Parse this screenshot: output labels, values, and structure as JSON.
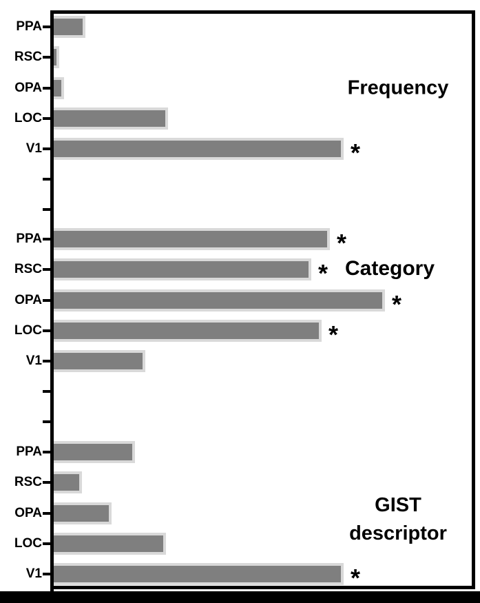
{
  "figure": {
    "background_color": "#ffffff",
    "frame_color": "#000000",
    "bottom_bar_color": "#000000"
  },
  "chart_data": {
    "type": "bar",
    "orientation": "horizontal",
    "title": "",
    "xlabel": "",
    "ylabel": "",
    "axis_numeric_labels": false,
    "xlim_fraction": [
      0,
      1
    ],
    "grid": false,
    "bar_color": "#7f7f7f",
    "bar_edge_color": "#d9d9d9",
    "significance_marker": "*",
    "groups": [
      {
        "label": "Frequency",
        "label_lines": [
          "Frequency"
        ],
        "categories": [
          "PPA",
          "RSC",
          "OPA",
          "LOC",
          "V1"
        ],
        "values": [
          0.07,
          0.006,
          0.018,
          0.267,
          0.687
        ],
        "significant": [
          false,
          false,
          false,
          false,
          true
        ]
      },
      {
        "label": "Category",
        "label_lines": [
          "Category"
        ],
        "categories": [
          "PPA",
          "RSC",
          "OPA",
          "LOC",
          "V1"
        ],
        "values": [
          0.654,
          0.61,
          0.786,
          0.634,
          0.213
        ],
        "significant": [
          true,
          true,
          true,
          true,
          false
        ]
      },
      {
        "label": "GIST descriptor",
        "label_lines": [
          "GIST",
          "descriptor"
        ],
        "categories": [
          "PPA",
          "RSC",
          "OPA",
          "LOC",
          "V1"
        ],
        "values": [
          0.188,
          0.061,
          0.132,
          0.262,
          0.687
        ],
        "significant": [
          false,
          false,
          false,
          false,
          true
        ]
      }
    ]
  }
}
